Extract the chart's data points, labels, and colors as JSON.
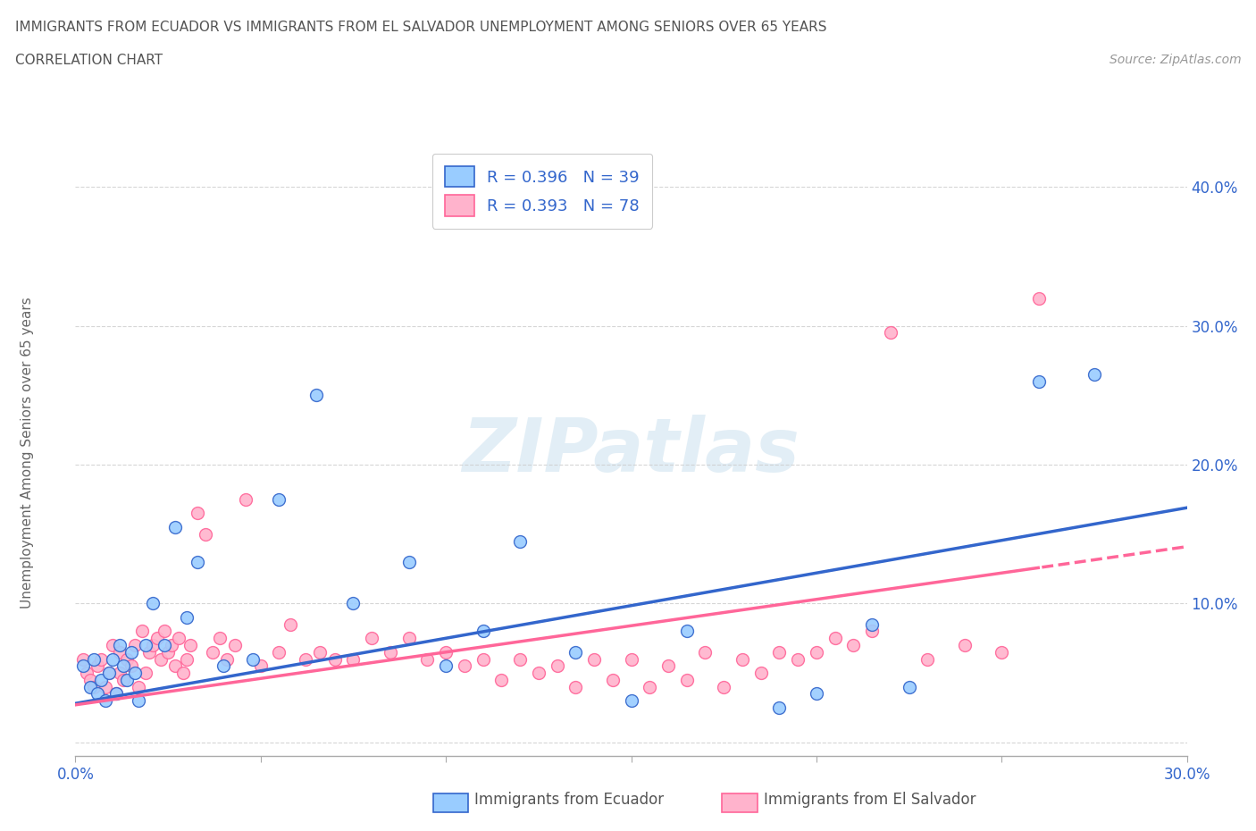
{
  "title_line1": "IMMIGRANTS FROM ECUADOR VS IMMIGRANTS FROM EL SALVADOR UNEMPLOYMENT AMONG SENIORS OVER 65 YEARS",
  "title_line2": "CORRELATION CHART",
  "source_text": "Source: ZipAtlas.com",
  "ylabel": "Unemployment Among Seniors over 65 years",
  "watermark": "ZIPatlas",
  "xlim": [
    0.0,
    0.3
  ],
  "ylim": [
    -0.01,
    0.43
  ],
  "R_ecuador": 0.396,
  "N_ecuador": 39,
  "R_salvador": 0.393,
  "N_salvador": 78,
  "color_ecuador": "#99CCFF",
  "color_salvador": "#FFB3CC",
  "color_line_ecuador": "#3366CC",
  "color_line_salvador": "#FF6699",
  "ecuador_x": [
    0.002,
    0.004,
    0.005,
    0.006,
    0.007,
    0.008,
    0.009,
    0.01,
    0.011,
    0.012,
    0.013,
    0.014,
    0.015,
    0.016,
    0.017,
    0.019,
    0.021,
    0.024,
    0.027,
    0.03,
    0.033,
    0.04,
    0.048,
    0.055,
    0.065,
    0.075,
    0.09,
    0.1,
    0.11,
    0.12,
    0.135,
    0.15,
    0.165,
    0.19,
    0.2,
    0.215,
    0.225,
    0.26,
    0.275
  ],
  "ecuador_y": [
    0.055,
    0.04,
    0.06,
    0.035,
    0.045,
    0.03,
    0.05,
    0.06,
    0.035,
    0.07,
    0.055,
    0.045,
    0.065,
    0.05,
    0.03,
    0.07,
    0.1,
    0.07,
    0.155,
    0.09,
    0.13,
    0.055,
    0.06,
    0.175,
    0.25,
    0.1,
    0.13,
    0.055,
    0.08,
    0.145,
    0.065,
    0.03,
    0.08,
    0.025,
    0.035,
    0.085,
    0.04,
    0.26,
    0.265
  ],
  "salvador_x": [
    0.002,
    0.003,
    0.004,
    0.005,
    0.006,
    0.007,
    0.008,
    0.009,
    0.01,
    0.011,
    0.012,
    0.012,
    0.013,
    0.014,
    0.015,
    0.016,
    0.017,
    0.018,
    0.019,
    0.02,
    0.021,
    0.022,
    0.023,
    0.024,
    0.025,
    0.026,
    0.027,
    0.028,
    0.029,
    0.03,
    0.031,
    0.033,
    0.035,
    0.037,
    0.039,
    0.041,
    0.043,
    0.046,
    0.05,
    0.055,
    0.058,
    0.062,
    0.066,
    0.07,
    0.075,
    0.08,
    0.085,
    0.09,
    0.095,
    0.1,
    0.105,
    0.11,
    0.115,
    0.12,
    0.125,
    0.13,
    0.135,
    0.14,
    0.145,
    0.15,
    0.155,
    0.16,
    0.165,
    0.17,
    0.175,
    0.18,
    0.185,
    0.19,
    0.195,
    0.2,
    0.205,
    0.21,
    0.215,
    0.22,
    0.23,
    0.24,
    0.25,
    0.26
  ],
  "salvador_y": [
    0.06,
    0.05,
    0.045,
    0.04,
    0.055,
    0.06,
    0.04,
    0.05,
    0.07,
    0.035,
    0.065,
    0.05,
    0.045,
    0.06,
    0.055,
    0.07,
    0.04,
    0.08,
    0.05,
    0.065,
    0.07,
    0.075,
    0.06,
    0.08,
    0.065,
    0.07,
    0.055,
    0.075,
    0.05,
    0.06,
    0.07,
    0.165,
    0.15,
    0.065,
    0.075,
    0.06,
    0.07,
    0.175,
    0.055,
    0.065,
    0.085,
    0.06,
    0.065,
    0.06,
    0.06,
    0.075,
    0.065,
    0.075,
    0.06,
    0.065,
    0.055,
    0.06,
    0.045,
    0.06,
    0.05,
    0.055,
    0.04,
    0.06,
    0.045,
    0.06,
    0.04,
    0.055,
    0.045,
    0.065,
    0.04,
    0.06,
    0.05,
    0.065,
    0.06,
    0.065,
    0.075,
    0.07,
    0.08,
    0.295,
    0.06,
    0.07,
    0.065,
    0.32
  ],
  "legend_label_ecuador": "Immigrants from Ecuador",
  "legend_label_salvador": "Immigrants from El Salvador",
  "background_color": "#FFFFFF",
  "grid_color": "#CCCCCC",
  "title_color": "#555555",
  "tick_label_color": "#3366CC",
  "line_intercept_ecuador": 0.028,
  "line_slope_ecuador": 0.47,
  "line_intercept_salvador": 0.027,
  "line_slope_salvador": 0.38,
  "line_solid_end_salvador": 0.26
}
